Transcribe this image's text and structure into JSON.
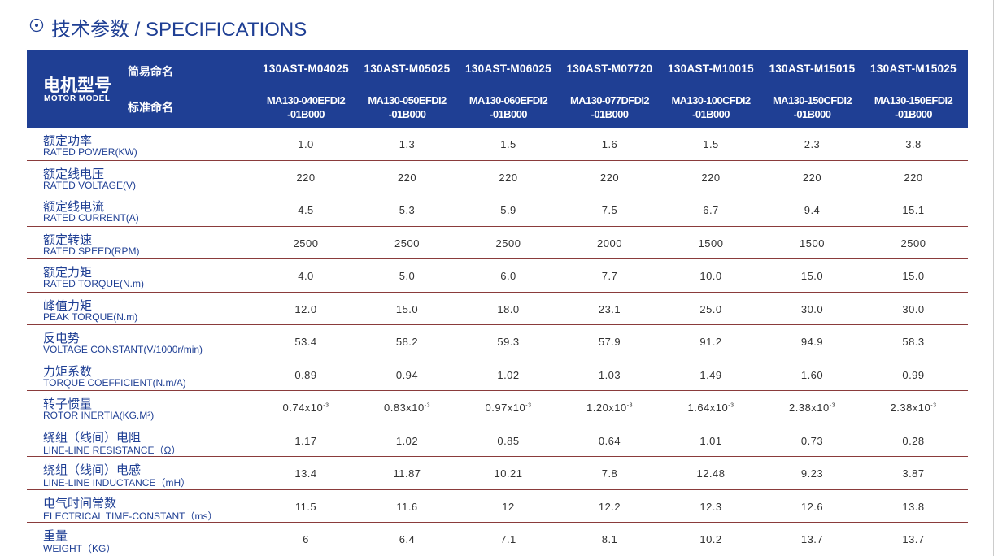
{
  "header": {
    "title": "技术参数 / SPECIFICATIONS"
  },
  "table": {
    "model_label": "电机型号",
    "model_label_en": "MOTOR MODEL",
    "short_name_label": "简易命名",
    "standard_name_label": "标准命名",
    "short_names": [
      "130AST-M04025",
      "130AST-M05025",
      "130AST-M06025",
      "130AST-M07720",
      "130AST-M10015",
      "130AST-M15015",
      "130AST-M15025"
    ],
    "standard_names": [
      [
        "MA130-040EFDI2",
        "-01B000"
      ],
      [
        "MA130-050EFDI2",
        "-01B000"
      ],
      [
        "MA130-060EFDI2",
        "-01B000"
      ],
      [
        "MA130-077DFDI2",
        "-01B000"
      ],
      [
        "MA130-100CFDI2",
        "-01B000"
      ],
      [
        "MA130-150CFDI2",
        "-01B000"
      ],
      [
        "MA130-150EFDI2",
        "-01B000"
      ]
    ],
    "rows": [
      {
        "label": "额定功率",
        "label_en": "RATED POWER(KW)",
        "values": [
          "1.0",
          "1.3",
          "1.5",
          "1.6",
          "1.5",
          "2.3",
          "3.8"
        ]
      },
      {
        "label": "额定线电压",
        "label_en": "RATED VOLTAGE(V)",
        "values": [
          "220",
          "220",
          "220",
          "220",
          "220",
          "220",
          "220"
        ]
      },
      {
        "label": "额定线电流",
        "label_en": "RATED CURRENT(A)",
        "values": [
          "4.5",
          "5.3",
          "5.9",
          "7.5",
          "6.7",
          "9.4",
          "15.1"
        ]
      },
      {
        "label": "额定转速",
        "label_en": "RATED SPEED(RPM)",
        "values": [
          "2500",
          "2500",
          "2500",
          "2000",
          "1500",
          "1500",
          "2500"
        ]
      },
      {
        "label": "额定力矩",
        "label_en": "RATED TORQUE(N.m)",
        "values": [
          "4.0",
          "5.0",
          "6.0",
          "7.7",
          "10.0",
          "15.0",
          "15.0"
        ]
      },
      {
        "label": "峰值力矩",
        "label_en": "PEAK TORQUE(N.m)",
        "values": [
          "12.0",
          "15.0",
          "18.0",
          "23.1",
          "25.0",
          "30.0",
          "30.0"
        ]
      },
      {
        "label": "反电势",
        "label_en": "VOLTAGE CONSTANT(V/1000r/min)",
        "values": [
          "53.4",
          "58.2",
          "59.3",
          "57.9",
          "91.2",
          "94.9",
          "58.3"
        ]
      },
      {
        "label": "力矩系数",
        "label_en": "TORQUE COEFFICIENT(N.m/A)",
        "values": [
          "0.89",
          "0.94",
          "1.02",
          "1.03",
          "1.49",
          "1.60",
          "0.99"
        ]
      },
      {
        "label": "转子惯量",
        "label_en": "ROTOR INERTIA(KG.M²)",
        "values": [
          {
            "base": "0.74x10",
            "sup": "-3"
          },
          {
            "base": "0.83x10",
            "sup": "-3"
          },
          {
            "base": "0.97x10",
            "sup": "-3"
          },
          {
            "base": "1.20x10",
            "sup": "-3"
          },
          {
            "base": "1.64x10",
            "sup": "-3"
          },
          {
            "base": "2.38x10",
            "sup": "-3"
          },
          {
            "base": "2.38x10",
            "sup": "-3"
          }
        ]
      },
      {
        "label": "绕组（线间）电阻",
        "label_en": "LINE-LINE RESISTANCE（Ω）",
        "values": [
          "1.17",
          "1.02",
          "0.85",
          "0.64",
          "1.01",
          "0.73",
          "0.28"
        ]
      },
      {
        "label": "绕组（线间）电感",
        "label_en": "LINE-LINE INDUCTANCE（mH）",
        "values": [
          "13.4",
          "11.87",
          "10.21",
          "7.8",
          "12.48",
          "9.23",
          "3.87"
        ]
      },
      {
        "label": "电气时间常数",
        "label_en": "ELECTRICAL TIME-CONSTANT（ms）",
        "values": [
          "11.5",
          "11.6",
          "12",
          "12.2",
          "12.3",
          "12.6",
          "13.8"
        ]
      },
      {
        "label": "重量",
        "label_en": "WEIGHT（KG）",
        "values": [
          "6",
          "6.4",
          "7.1",
          "8.1",
          "10.2",
          "13.7",
          "13.7"
        ]
      }
    ]
  }
}
